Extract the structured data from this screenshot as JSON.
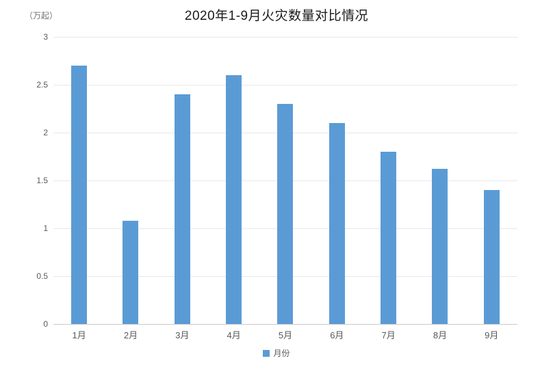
{
  "chart_data": {
    "type": "bar",
    "title": "2020年1-9月火灾数量对比情况",
    "unit_label": "（万起）",
    "categories": [
      "1月",
      "2月",
      "3月",
      "4月",
      "5月",
      "6月",
      "7月",
      "8月",
      "9月"
    ],
    "values": [
      2.7,
      1.08,
      2.4,
      2.6,
      2.3,
      2.1,
      1.8,
      1.62,
      1.4
    ],
    "series_name": "月份",
    "legend_position": "bottom",
    "ylim": [
      0,
      3
    ],
    "ytick_labels": [
      "0",
      "0.5",
      "1",
      "1.5",
      "2",
      "2.5",
      "3"
    ],
    "ytick_values": [
      0,
      0.5,
      1,
      1.5,
      2,
      2.5,
      3
    ],
    "grid": true,
    "colors": {
      "bar": "#5b9bd5",
      "gridline": "#e8e8e8",
      "axis_line": "#c9c9c9",
      "tick_label": "#595959",
      "title": "#1a1a1a",
      "unit_label": "#737373",
      "background": "#ffffff"
    }
  }
}
